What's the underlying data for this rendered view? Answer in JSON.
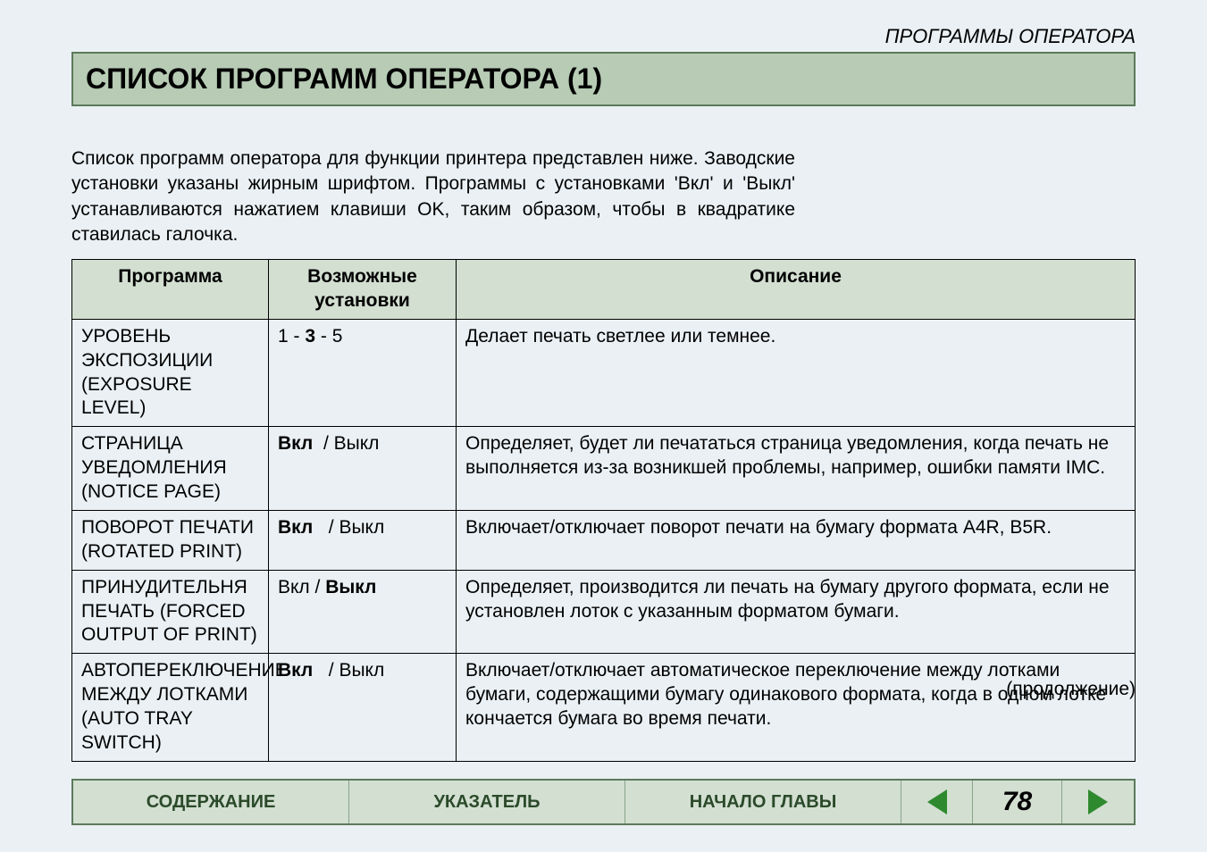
{
  "header_label": "ПРОГРАММЫ ОПЕРАТОРА",
  "title": "СПИСОК ПРОГРАММ ОПЕРАТОРА (1)",
  "intro": "Список программ оператора для функции принтера представлен ниже. Заводские установки указаны жирным шрифтом. Программы с установками 'Вкл' и 'Выкл' устанавливаются нажатием клавиши OK, таким образом, чтобы в квадратике ставилась галочка.",
  "columns": {
    "program": "Программа",
    "settings": "Возможные установки",
    "description": "Описание"
  },
  "rows": [
    {
      "program": "УРОВЕНЬ ЭКСПОЗИЦИИ (EXPOSURE LEVEL)",
      "settings_html": "1 - <b>3</b> - 5",
      "description": "Делает печать светлее или темнее."
    },
    {
      "program": "СТРАНИЦА УВЕДОМЛЕНИЯ (NOTICE PAGE)",
      "settings_html": "<b>Вкл</b>  / Выкл",
      "description": "Определяет, будет ли печататься страница уведомления, когда печать не выполняется из-за возникшей проблемы, например, ошибки памяти IMC."
    },
    {
      "program": "ПОВОРОТ ПЕЧАТИ (ROTATED PRINT)",
      "settings_html": "<b>Вкл</b>   / Выкл",
      "description": "Включает/отключает поворот печати на бумагу формата A4R, B5R."
    },
    {
      "program": "ПРИНУДИТЕЛЬНЯ ПЕЧАТЬ (FORCED OUTPUT OF PRINT)",
      "settings_html": "Вкл / <b>Выкл</b>",
      "description": "Определяет, производится ли печать на бумагу другого формата, если не установлен лоток с указанным форматом бумаги."
    },
    {
      "program": "АВТОПЕРЕКЛЮЧЕНИЕ МЕЖДУ ЛОТКАМИ (AUTO TRAY SWITCH)",
      "settings_html": "<b>Вкл</b>   / Выкл",
      "description": "Включает/отключает автоматическое переключение между лотками бумаги, содержащими бумагу одинакового формата, когда в одном лотке кончается бумага во время печати."
    }
  ],
  "continued": "(продолжение)",
  "footer": {
    "contents": "СОДЕРЖАНИЕ",
    "index": "УКАЗАТЕЛЬ",
    "chapter_start": "НАЧАЛО ГЛАВЫ",
    "page": "78"
  }
}
